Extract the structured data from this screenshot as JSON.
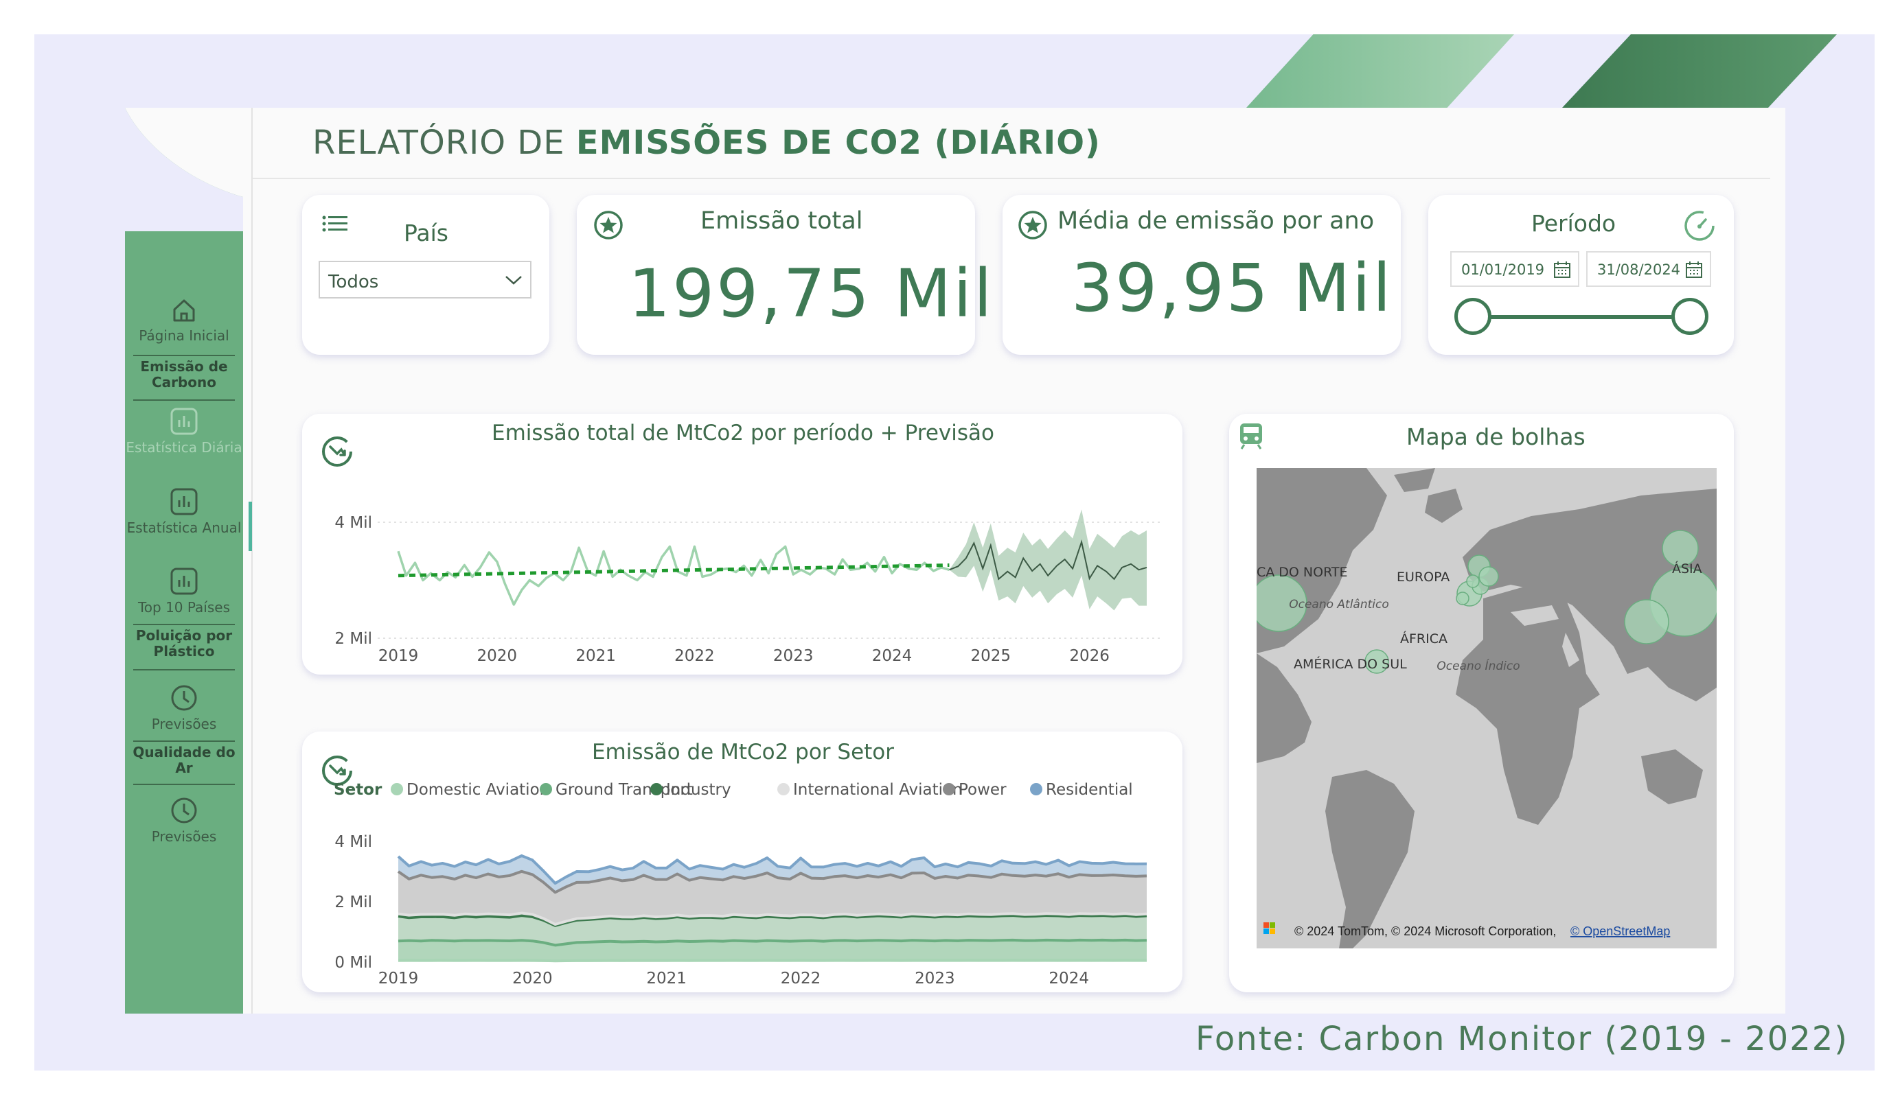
{
  "header": {
    "title_light": "RELATÓRIO DE ",
    "title_bold": "EMISSÕES DE CO2 (DIÁRIO)"
  },
  "sidebar": {
    "items": [
      {
        "label": "Página Inicial",
        "icon": "home-icon"
      },
      {
        "label": "Emissão de Carbono",
        "icon": ""
      },
      {
        "label": "Estatística Diária",
        "icon": "bar-chart-icon"
      },
      {
        "label": "Estatística Anual",
        "icon": "bar-chart-icon"
      },
      {
        "label": "Top 10 Países",
        "icon": "bar-chart-icon"
      },
      {
        "label": "Poluição por Plástico",
        "icon": ""
      },
      {
        "label": "Previsões",
        "icon": "clock-icon"
      },
      {
        "label": "Qualidade do Ar",
        "icon": ""
      },
      {
        "label": "Previsões",
        "icon": "clock-icon"
      }
    ]
  },
  "filters": {
    "country_title": "País",
    "country_value": "Todos",
    "period_title": "Período",
    "start_date": "01/01/2019",
    "end_date": "31/08/2024"
  },
  "kpis": {
    "total_title": "Emissão total",
    "total_value": "199,75 Mil",
    "avg_title": "Média de emissão por ano",
    "avg_value": "39,95 Mil"
  },
  "chart_data": [
    {
      "type": "line",
      "title": "Emissão total de MtCo2 por período + Previsão",
      "x_ticks": [
        "2019",
        "2020",
        "2021",
        "2022",
        "2023",
        "2024",
        "2025",
        "2026"
      ],
      "y_ticks": [
        "2 Mil",
        "4 Mil"
      ],
      "ylim": [
        2000,
        4000
      ],
      "grid": true,
      "series": [
        {
          "role": "actual",
          "x": [
            2019.0,
            2019.08,
            2019.17,
            2019.25,
            2019.33,
            2019.42,
            2019.5,
            2019.58,
            2019.67,
            2019.75,
            2019.83,
            2019.92,
            2020.0,
            2020.08,
            2020.17,
            2020.25,
            2020.33,
            2020.42,
            2020.5,
            2020.58,
            2020.67,
            2020.75,
            2020.83,
            2020.92,
            2021.0,
            2021.08,
            2021.17,
            2021.25,
            2021.33,
            2021.42,
            2021.5,
            2021.58,
            2021.67,
            2021.75,
            2021.83,
            2021.92,
            2022.0,
            2022.08,
            2022.17,
            2022.25,
            2022.33,
            2022.42,
            2022.5,
            2022.58,
            2022.67,
            2022.75,
            2022.83,
            2022.92,
            2023.0,
            2023.08,
            2023.17,
            2023.25,
            2023.33,
            2023.42,
            2023.5,
            2023.58,
            2023.67,
            2023.75,
            2023.83,
            2023.92,
            2024.0,
            2024.08,
            2024.17,
            2024.25,
            2024.33,
            2024.42,
            2024.5,
            2024.58
          ],
          "values": [
            3500,
            3080,
            3300,
            3000,
            3120,
            3000,
            3140,
            3050,
            3260,
            3060,
            3220,
            3480,
            3320,
            2940,
            2580,
            2830,
            3000,
            2900,
            3040,
            3120,
            3000,
            3150,
            3560,
            3150,
            3080,
            3500,
            3060,
            3180,
            3080,
            3000,
            3140,
            3060,
            3400,
            3580,
            3150,
            3080,
            3580,
            3060,
            3100,
            3180,
            3200,
            3140,
            3250,
            3080,
            3350,
            3120,
            3450,
            3580,
            3100,
            3180,
            3100,
            3220,
            3200,
            3100,
            3360,
            3180,
            3200,
            3300,
            3150,
            3400,
            3120,
            3280,
            3200,
            3180,
            3300,
            3160,
            3220,
            3180
          ]
        },
        {
          "role": "trend",
          "x": [
            2019.0,
            2024.58
          ],
          "values": [
            3080,
            3260
          ]
        },
        {
          "role": "forecast",
          "x": [
            2024.58,
            2024.67,
            2024.75,
            2024.83,
            2024.92,
            2025.0,
            2025.08,
            2025.17,
            2025.25,
            2025.33,
            2025.42,
            2025.5,
            2025.58,
            2025.67,
            2025.75,
            2025.83,
            2025.92,
            2026.0,
            2026.08,
            2026.17,
            2026.25,
            2026.33,
            2026.42,
            2026.5,
            2026.58
          ],
          "values": [
            3180,
            3240,
            3380,
            3640,
            3200,
            3600,
            3020,
            3150,
            3050,
            3380,
            3160,
            3280,
            3080,
            3250,
            3360,
            3200,
            3660,
            3030,
            3250,
            3150,
            3020,
            3220,
            3280,
            3180,
            3220
          ],
          "lower": [
            3180,
            3060,
            3050,
            3250,
            2800,
            3180,
            2650,
            2720,
            2600,
            2900,
            2700,
            2820,
            2600,
            2760,
            2850,
            2700,
            3080,
            2500,
            2720,
            2600,
            2480,
            2680,
            2700,
            2560,
            2560
          ],
          "upper": [
            3180,
            3400,
            3620,
            4000,
            3560,
            3980,
            3420,
            3560,
            3480,
            3820,
            3600,
            3720,
            3540,
            3720,
            3860,
            3720,
            4220,
            3540,
            3800,
            3680,
            3560,
            3760,
            3860,
            3780,
            3860
          ]
        }
      ]
    },
    {
      "type": "area",
      "title": "Emissão de MtCo2 por Setor",
      "legend_title": "Setor",
      "legend_position": "top",
      "x_ticks": [
        "2019",
        "2020",
        "2021",
        "2022",
        "2023",
        "2024"
      ],
      "y_ticks": [
        "0 Mil",
        "2 Mil",
        "4 Mil"
      ],
      "ylim": [
        0,
        4000
      ],
      "stacked": true,
      "x": [
        2019.0,
        2019.08,
        2019.17,
        2019.25,
        2019.33,
        2019.42,
        2019.5,
        2019.58,
        2019.67,
        2019.75,
        2019.83,
        2019.92,
        2020.0,
        2020.08,
        2020.17,
        2020.25,
        2020.33,
        2020.42,
        2020.5,
        2020.58,
        2020.67,
        2020.75,
        2020.83,
        2020.92,
        2021.0,
        2021.08,
        2021.17,
        2021.25,
        2021.33,
        2021.42,
        2021.5,
        2021.58,
        2021.67,
        2021.75,
        2021.83,
        2021.92,
        2022.0,
        2022.08,
        2022.17,
        2022.25,
        2022.33,
        2022.42,
        2022.5,
        2022.58,
        2022.67,
        2022.75,
        2022.83,
        2022.92,
        2023.0,
        2023.08,
        2023.17,
        2023.25,
        2023.33,
        2023.42,
        2023.5,
        2023.58,
        2023.67,
        2023.75,
        2023.83,
        2023.92,
        2024.0,
        2024.08,
        2024.17,
        2024.25,
        2024.33,
        2024.42,
        2024.5,
        2024.58
      ],
      "series": [
        {
          "name": "Domestic Aviation",
          "color": "#a8d5b5",
          "values": [
            60,
            62,
            60,
            61,
            62,
            60,
            61,
            62,
            60,
            61,
            60,
            62,
            60,
            50,
            40,
            45,
            50,
            52,
            55,
            58,
            55,
            56,
            58,
            56,
            58,
            60,
            58,
            60,
            61,
            60,
            62,
            61,
            60,
            62,
            61,
            60,
            62,
            61,
            60,
            62,
            63,
            61,
            62,
            63,
            62,
            61,
            63,
            62,
            62,
            63,
            62,
            64,
            63,
            62,
            63,
            64,
            63,
            62,
            64,
            63,
            62,
            64,
            63,
            64,
            63,
            64,
            62,
            63
          ]
        },
        {
          "name": "Ground Transport",
          "color": "#6aae80",
          "values": [
            640,
            650,
            640,
            660,
            650,
            640,
            655,
            650,
            660,
            650,
            645,
            660,
            640,
            600,
            520,
            560,
            600,
            610,
            620,
            630,
            615,
            620,
            630,
            615,
            620,
            640,
            625,
            630,
            640,
            630,
            650,
            640,
            630,
            650,
            640,
            630,
            640,
            650,
            630,
            650,
            655,
            640,
            650,
            660,
            650,
            640,
            660,
            650,
            640,
            655,
            645,
            660,
            655,
            650,
            660,
            665,
            650,
            655,
            665,
            660,
            650,
            665,
            660,
            665,
            655,
            665,
            650,
            660
          ]
        },
        {
          "name": "Industry",
          "color": "#3c7a4e",
          "values": [
            820,
            760,
            800,
            780,
            790,
            770,
            800,
            780,
            800,
            790,
            780,
            820,
            800,
            740,
            650,
            700,
            740,
            750,
            760,
            780,
            770,
            760,
            790,
            770,
            780,
            800,
            770,
            790,
            780,
            770,
            800,
            790,
            780,
            800,
            790,
            780,
            800,
            790,
            780,
            800,
            810,
            790,
            800,
            810,
            800,
            790,
            810,
            800,
            790,
            800,
            795,
            810,
            800,
            800,
            810,
            815,
            800,
            805,
            815,
            810,
            800,
            815,
            810,
            815,
            805,
            815,
            800,
            810
          ]
        },
        {
          "name": "International Aviation",
          "color": "#e0e0e0",
          "values": [
            80,
            82,
            80,
            81,
            82,
            80,
            81,
            82,
            80,
            81,
            80,
            82,
            80,
            60,
            40,
            45,
            50,
            52,
            55,
            58,
            55,
            56,
            58,
            56,
            58,
            60,
            58,
            60,
            61,
            60,
            62,
            61,
            60,
            62,
            61,
            60,
            62,
            61,
            60,
            62,
            63,
            61,
            62,
            63,
            62,
            61,
            63,
            62,
            62,
            63,
            62,
            64,
            63,
            62,
            63,
            64,
            63,
            62,
            64,
            63,
            62,
            64,
            63,
            64,
            63,
            64,
            62,
            63
          ]
        },
        {
          "name": "Power",
          "color": "#8a8a8a",
          "values": [
            1400,
            1200,
            1300,
            1220,
            1250,
            1200,
            1280,
            1220,
            1320,
            1240,
            1300,
            1380,
            1320,
            1200,
            1060,
            1140,
            1200,
            1180,
            1220,
            1260,
            1200,
            1240,
            1340,
            1240,
            1220,
            1360,
            1200,
            1260,
            1220,
            1200,
            1260,
            1220,
            1320,
            1380,
            1240,
            1220,
            1380,
            1220,
            1240,
            1260,
            1270,
            1240,
            1290,
            1220,
            1320,
            1240,
            1350,
            1380,
            1220,
            1260,
            1220,
            1280,
            1270,
            1230,
            1320,
            1260,
            1270,
            1300,
            1240,
            1330,
            1240,
            1290,
            1270,
            1260,
            1300,
            1250,
            1270,
            1260
          ]
        },
        {
          "name": "Residential",
          "color": "#7aa3c8",
          "values": [
            500,
            430,
            450,
            410,
            440,
            420,
            440,
            430,
            480,
            430,
            470,
            520,
            480,
            380,
            300,
            330,
            360,
            350,
            360,
            380,
            360,
            380,
            460,
            380,
            380,
            460,
            370,
            400,
            380,
            360,
            400,
            370,
            420,
            500,
            380,
            370,
            500,
            370,
            380,
            400,
            410,
            380,
            410,
            370,
            430,
            380,
            450,
            500,
            380,
            410,
            370,
            420,
            410,
            380,
            440,
            410,
            420,
            440,
            390,
            450,
            380,
            430,
            410,
            400,
            420,
            400,
            410,
            400
          ]
        }
      ]
    }
  ],
  "map": {
    "title": "Mapa de bolhas",
    "labels": [
      "CA DO NORTE",
      "EUROPA",
      "ÁSIA",
      "Oceano Atlântico",
      "ÁFRICA",
      "AMÉRICA DO SUL",
      "Oceano Índico"
    ],
    "attribution": "© 2024 TomTom, © 2024 Microsoft Corporation,",
    "attribution_link": "© OpenStreetMap",
    "bubble_color": "#a8d5b5"
  },
  "footer": {
    "source": "Fonte: Carbon Monitor (2019 - 2022)"
  }
}
